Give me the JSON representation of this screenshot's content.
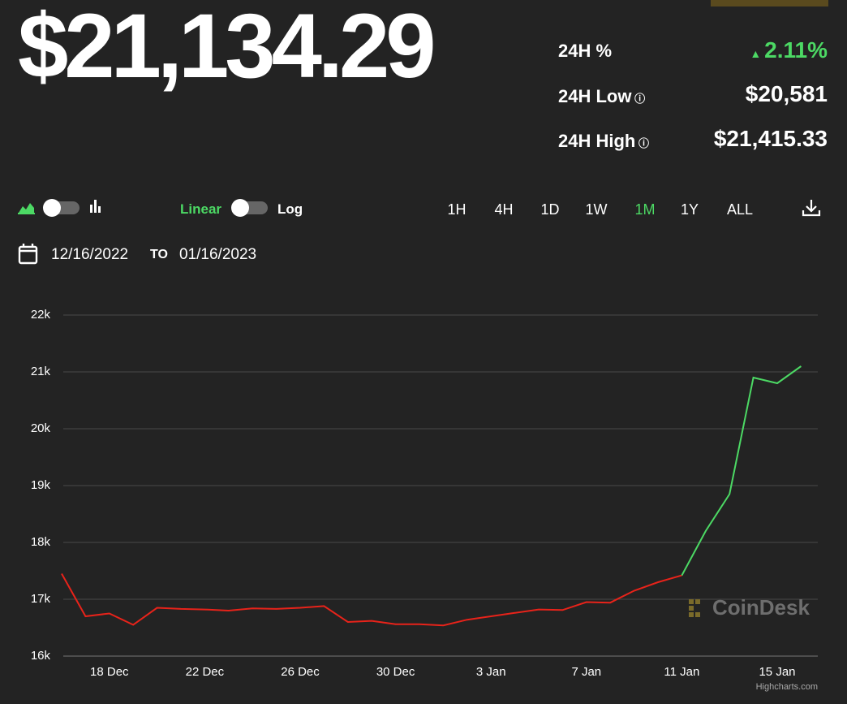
{
  "price": "$21,134.29",
  "stats": [
    {
      "label": "24H %",
      "value": "2.11%"
    },
    {
      "label": "24H Low",
      "value": "$20,581"
    },
    {
      "label": "24H High",
      "value": "$21,415.33"
    }
  ],
  "toolbar": {
    "linear": "Linear",
    "log": "Log",
    "ranges": [
      "1H",
      "4H",
      "1D",
      "1W",
      "1M",
      "1Y",
      "ALL"
    ],
    "active_range": "1M"
  },
  "date_range": {
    "from": "12/16/2022",
    "to_label": "TO",
    "to": "01/16/2023"
  },
  "watermark": "CoinDesk",
  "credits": "Highcharts.com",
  "chart_data": {
    "type": "line",
    "x": [
      "16 Dec",
      "17 Dec",
      "18 Dec",
      "19 Dec",
      "20 Dec",
      "21 Dec",
      "22 Dec",
      "23 Dec",
      "24 Dec",
      "25 Dec",
      "26 Dec",
      "27 Dec",
      "28 Dec",
      "29 Dec",
      "30 Dec",
      "31 Dec",
      "1 Jan",
      "2 Jan",
      "3 Jan",
      "4 Jan",
      "5 Jan",
      "6 Jan",
      "7 Jan",
      "8 Jan",
      "9 Jan",
      "10 Jan",
      "11 Jan",
      "12 Jan",
      "13 Jan",
      "14 Jan",
      "15 Jan",
      "16 Jan"
    ],
    "xticks": [
      "18 Dec",
      "22 Dec",
      "26 Dec",
      "30 Dec",
      "3 Jan",
      "7 Jan",
      "11 Jan",
      "15 Jan"
    ],
    "series": [
      {
        "color": "#e8231a",
        "values": [
          17450,
          16700,
          16750,
          16550,
          16850,
          16830,
          16820,
          16800,
          16840,
          16830,
          16850,
          16880,
          16600,
          16620,
          16560,
          16560,
          16540,
          16640,
          16700,
          16760,
          16820,
          16810,
          16950,
          16940,
          17150,
          17300,
          17420,
          null,
          null,
          null,
          null,
          null
        ]
      },
      {
        "color": "#4cd964",
        "values": [
          null,
          null,
          null,
          null,
          null,
          null,
          null,
          null,
          null,
          null,
          null,
          null,
          null,
          null,
          null,
          null,
          null,
          null,
          null,
          null,
          null,
          null,
          null,
          null,
          null,
          null,
          17420,
          18200,
          18850,
          20900,
          20800,
          21100
        ]
      }
    ],
    "ylim": [
      16000,
      22000
    ],
    "yticks": [
      {
        "value": 16000,
        "label": "16k"
      },
      {
        "value": 17000,
        "label": "17k"
      },
      {
        "value": 18000,
        "label": "18k"
      },
      {
        "value": 19000,
        "label": "19k"
      },
      {
        "value": 20000,
        "label": "20k"
      },
      {
        "value": 21000,
        "label": "21k"
      },
      {
        "value": 22000,
        "label": "22k"
      }
    ],
    "grid": true
  }
}
